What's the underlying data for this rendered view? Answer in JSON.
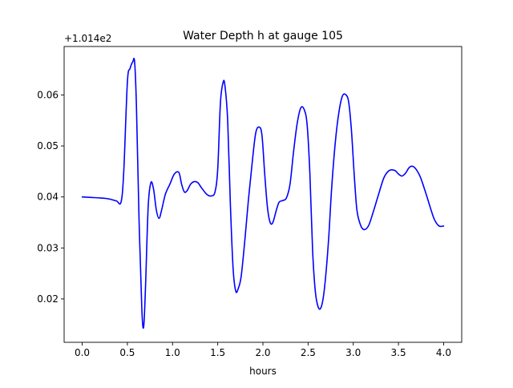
{
  "chart_data": {
    "type": "line",
    "title": "Water Depth h at gauge 105",
    "xlabel": "hours",
    "ylabel": "",
    "y_offset_label": "+1.014e2",
    "xlim": [
      -0.2,
      4.2
    ],
    "ylim": [
      0.0115,
      0.0695
    ],
    "xticks": [
      0.0,
      0.5,
      1.0,
      1.5,
      2.0,
      2.5,
      3.0,
      3.5,
      4.0
    ],
    "xtick_labels": [
      "0.0",
      "0.5",
      "1.0",
      "1.5",
      "2.0",
      "2.5",
      "3.0",
      "3.5",
      "4.0"
    ],
    "yticks": [
      0.02,
      0.03,
      0.04,
      0.05,
      0.06
    ],
    "ytick_labels": [
      "0.02",
      "0.03",
      "0.04",
      "0.05",
      "0.06"
    ],
    "grid": false,
    "series": [
      {
        "color": "#0000ff",
        "x": [
          0.0,
          0.1,
          0.2,
          0.3,
          0.38,
          0.43,
          0.46,
          0.5,
          0.53,
          0.56,
          0.58,
          0.6,
          0.63,
          0.66,
          0.68,
          0.7,
          0.73,
          0.76,
          0.79,
          0.82,
          0.85,
          0.88,
          0.92,
          0.97,
          1.02,
          1.07,
          1.1,
          1.13,
          1.16,
          1.2,
          1.24,
          1.28,
          1.32,
          1.38,
          1.43,
          1.47,
          1.5,
          1.53,
          1.56,
          1.58,
          1.61,
          1.64,
          1.67,
          1.7,
          1.73,
          1.76,
          1.8,
          1.84,
          1.88,
          1.92,
          1.96,
          1.99,
          2.02,
          2.05,
          2.08,
          2.11,
          2.15,
          2.18,
          2.22,
          2.26,
          2.3,
          2.34,
          2.38,
          2.42,
          2.46,
          2.49,
          2.52,
          2.55,
          2.58,
          2.61,
          2.64,
          2.67,
          2.7,
          2.73,
          2.76,
          2.8,
          2.84,
          2.88,
          2.92,
          2.95,
          2.98,
          3.01,
          3.04,
          3.08,
          3.12,
          3.17,
          3.22,
          3.28,
          3.34,
          3.4,
          3.46,
          3.5,
          3.54,
          3.58,
          3.62,
          3.66,
          3.7,
          3.74,
          3.78,
          3.82,
          3.86,
          3.9,
          3.95,
          4.0
        ],
        "y": [
          0.04,
          0.0399,
          0.0398,
          0.0396,
          0.0392,
          0.039,
          0.045,
          0.0625,
          0.0652,
          0.0665,
          0.0665,
          0.058,
          0.035,
          0.018,
          0.0145,
          0.022,
          0.038,
          0.0428,
          0.0415,
          0.0375,
          0.0358,
          0.0375,
          0.0405,
          0.0425,
          0.0445,
          0.0448,
          0.0425,
          0.041,
          0.0412,
          0.0425,
          0.043,
          0.0428,
          0.0418,
          0.0405,
          0.0402,
          0.041,
          0.0455,
          0.0585,
          0.0625,
          0.0618,
          0.055,
          0.0385,
          0.026,
          0.0215,
          0.0222,
          0.0245,
          0.0315,
          0.0395,
          0.0465,
          0.0525,
          0.0537,
          0.052,
          0.0445,
          0.038,
          0.035,
          0.035,
          0.0375,
          0.039,
          0.0393,
          0.0398,
          0.0425,
          0.049,
          0.0545,
          0.0575,
          0.057,
          0.054,
          0.0445,
          0.0295,
          0.0215,
          0.0185,
          0.0182,
          0.0205,
          0.0255,
          0.0325,
          0.0415,
          0.0505,
          0.0565,
          0.0598,
          0.06,
          0.0585,
          0.053,
          0.0445,
          0.0375,
          0.0345,
          0.0336,
          0.0344,
          0.037,
          0.0405,
          0.0438,
          0.0452,
          0.0452,
          0.0445,
          0.0441,
          0.0447,
          0.0458,
          0.046,
          0.0453,
          0.044,
          0.042,
          0.0398,
          0.0375,
          0.0355,
          0.0343,
          0.0343
        ]
      }
    ]
  }
}
